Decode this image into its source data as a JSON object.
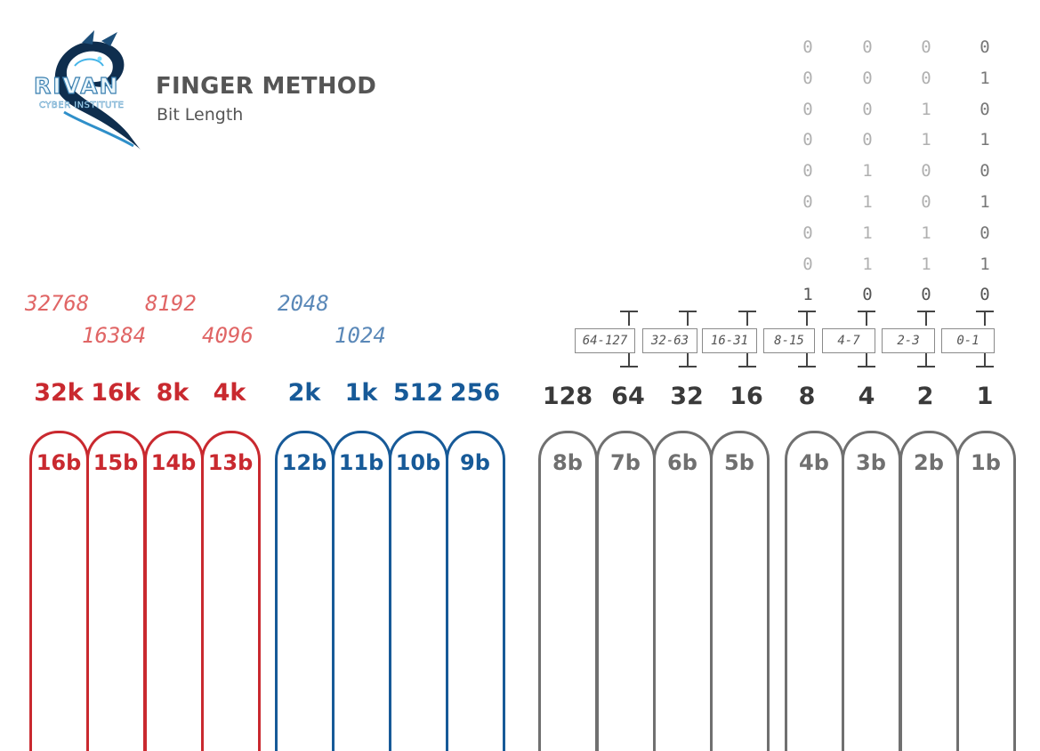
{
  "header": {
    "logo_word": "RIVAN",
    "logo_subtitle": "CYBER INSTITUTE",
    "title": "FINGER METHOD",
    "subtitle": "Bit Length"
  },
  "colors": {
    "red": "#c9292f",
    "blue": "#175a98",
    "gray": "#707070",
    "dark": "#3a3a3a",
    "light_red": "#e06565",
    "light_blue": "#5a88b8",
    "bit_gray": "#b0b0b0"
  },
  "binary_columns": [
    [
      "0",
      "0",
      "0",
      "0",
      "0",
      "0",
      "0",
      "0",
      "1"
    ],
    [
      "0",
      "0",
      "0",
      "0",
      "1",
      "1",
      "1",
      "1",
      "0"
    ],
    [
      "0",
      "0",
      "1",
      "1",
      "0",
      "0",
      "1",
      "1",
      "0"
    ],
    [
      "0",
      "1",
      "0",
      "1",
      "0",
      "1",
      "0",
      "1",
      "0"
    ]
  ],
  "large_values": {
    "red_top": [
      "32768",
      "8192"
    ],
    "red_bottom": [
      "16384",
      "4096"
    ],
    "blue_top": "2048",
    "blue_bottom": "1024"
  },
  "ranges": [
    "64-127",
    "32-63",
    "16-31",
    "8-15",
    "4-7",
    "2-3",
    "0-1"
  ],
  "place_values": {
    "red": [
      "32k",
      "16k",
      "8k",
      "4k"
    ],
    "blue": [
      "2k",
      "1k",
      "512",
      "256"
    ],
    "dark": [
      "128",
      "64",
      "32",
      "16",
      "8",
      "4",
      "2",
      "1"
    ]
  },
  "fingers": {
    "red": [
      "16b",
      "15b",
      "14b",
      "13b"
    ],
    "blue": [
      "12b",
      "11b",
      "10b",
      "9b"
    ],
    "gray": [
      "8b",
      "7b",
      "6b",
      "5b",
      "4b",
      "3b",
      "2b",
      "1b"
    ]
  }
}
